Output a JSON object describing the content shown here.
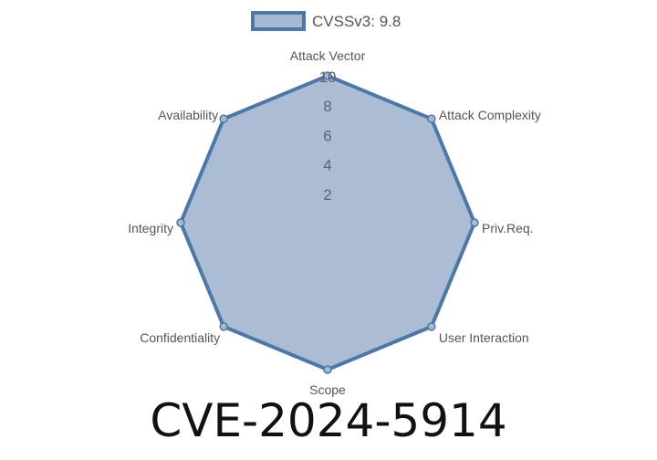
{
  "chart_data": {
    "type": "radar",
    "title": "CVE-2024-5914",
    "categories": [
      "Attack Vector",
      "Attack Complexity",
      "Priv.Req.",
      "User Interaction",
      "Scope",
      "Confidentiality",
      "Integrity",
      "Availability"
    ],
    "series": [
      {
        "name": "CVSSv3: 9.8",
        "values": [
          10,
          10,
          10,
          10,
          10,
          10,
          10,
          10
        ]
      }
    ],
    "rlim": [
      0,
      10
    ],
    "ticks": [
      "2",
      "4",
      "6",
      "8",
      "10"
    ],
    "grid": true,
    "legend": "top",
    "colors": {
      "stroke": "#4e77a8",
      "fill": "#a6b9d3",
      "grid": "#c8cdd4",
      "text": "#555555"
    }
  }
}
